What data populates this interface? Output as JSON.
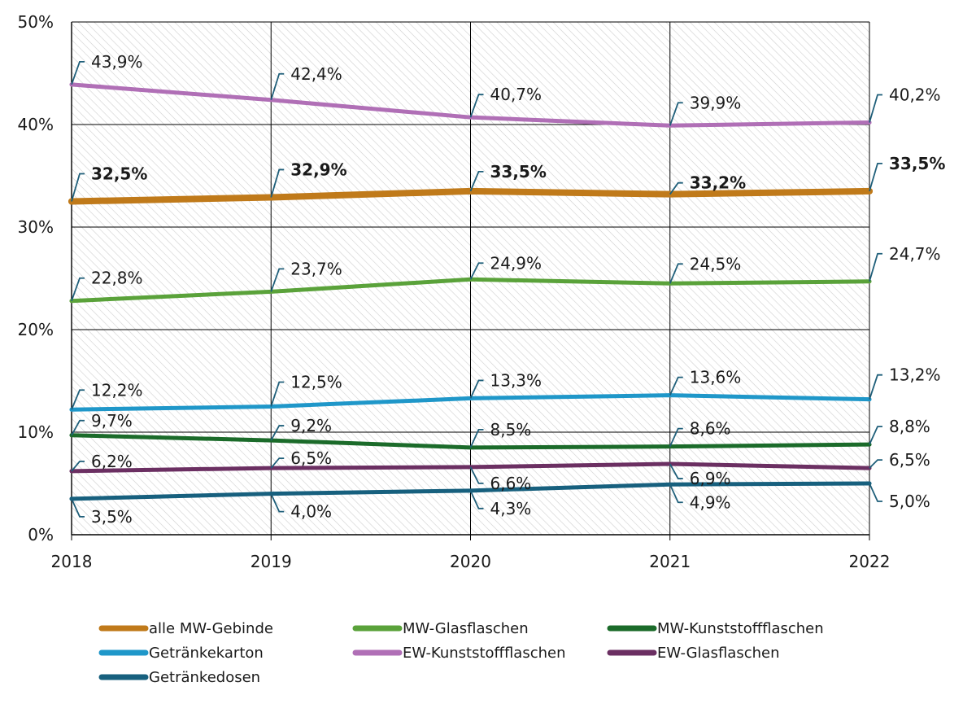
{
  "chart_data": {
    "type": "line",
    "title": "",
    "xlabel": "",
    "ylabel": "",
    "x": [
      "2018",
      "2019",
      "2020",
      "2021",
      "2022"
    ],
    "ylim": [
      0,
      50
    ],
    "yticks": [
      0,
      10,
      20,
      30,
      40,
      50
    ],
    "ytick_labels": [
      "0%",
      "10%",
      "20%",
      "30%",
      "40%",
      "50%"
    ],
    "grid": true,
    "legend_position": "bottom",
    "leader_color": "#1f5f7a",
    "series": [
      {
        "name": "alle MW-Gebinde",
        "color": "#c07a1a",
        "bold": true,
        "values": [
          32.5,
          32.9,
          33.5,
          33.2,
          33.5
        ],
        "labels": [
          "32,5%",
          "32,9%",
          "33,5%",
          "33,2%",
          "33,5%"
        ]
      },
      {
        "name": "MW-Glasflaschen",
        "color": "#5aa23a",
        "bold": false,
        "values": [
          22.8,
          23.7,
          24.9,
          24.5,
          24.7
        ],
        "labels": [
          "22,8%",
          "23,7%",
          "24,9%",
          "24,5%",
          "24,7%"
        ]
      },
      {
        "name": "MW-Kunststoffflaschen",
        "color": "#1b6b2a",
        "bold": false,
        "values": [
          9.7,
          9.2,
          8.5,
          8.6,
          8.8
        ],
        "labels": [
          "9,7%",
          "9,2%",
          "8,5%",
          "8,6%",
          "8,8%"
        ]
      },
      {
        "name": "Getränkekarton",
        "color": "#1f97c9",
        "bold": false,
        "values": [
          12.2,
          12.5,
          13.3,
          13.6,
          13.2
        ],
        "labels": [
          "12,2%",
          "12,5%",
          "13,3%",
          "13,6%",
          "13,2%"
        ]
      },
      {
        "name": "EW-Kunststoffflaschen",
        "color": "#b06fb6",
        "bold": false,
        "values": [
          43.9,
          42.4,
          40.7,
          39.9,
          40.2
        ],
        "labels": [
          "43,9%",
          "42,4%",
          "40,7%",
          "39,9%",
          "40,2%"
        ]
      },
      {
        "name": "EW-Glasflaschen",
        "color": "#6b2f62",
        "bold": false,
        "values": [
          6.2,
          6.5,
          6.6,
          6.9,
          6.5
        ],
        "labels": [
          "6,2%",
          "6,5%",
          "6,6%",
          "6,9%",
          "6,5%"
        ]
      },
      {
        "name": "Getränkedosen",
        "color": "#17607e",
        "bold": false,
        "values": [
          3.5,
          4.0,
          4.3,
          4.9,
          5.0
        ],
        "labels": [
          "3,5%",
          "4,0%",
          "4,3%",
          "4,9%",
          "5,0%"
        ]
      }
    ]
  }
}
